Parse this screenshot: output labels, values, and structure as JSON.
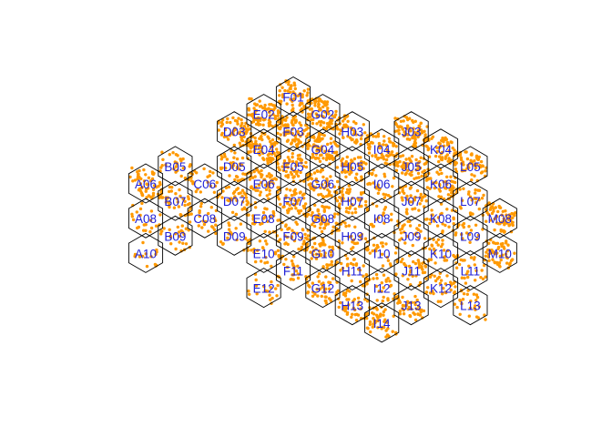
{
  "colors": {
    "cell_border": "#000000",
    "label": "#1f1fd6",
    "points": "#ff9900",
    "background": "#ffffff"
  },
  "grid": {
    "columns": [
      "A",
      "B",
      "C",
      "D",
      "E",
      "F",
      "G",
      "H",
      "I",
      "J",
      "K",
      "L",
      "M"
    ],
    "cells": [
      {
        "id": "A06",
        "label": "A06",
        "density": 0.6
      },
      {
        "id": "A08",
        "label": "A08",
        "density": 0.25
      },
      {
        "id": "A10",
        "label": "A10",
        "density": 0.15
      },
      {
        "id": "B05",
        "label": "B05",
        "density": 0.35
      },
      {
        "id": "B07",
        "label": "B07",
        "density": 0.4
      },
      {
        "id": "B09",
        "label": "B09",
        "density": 0.25
      },
      {
        "id": "C06",
        "label": "C06",
        "density": 0.25
      },
      {
        "id": "C08",
        "label": "C08",
        "density": 0.3
      },
      {
        "id": "D03",
        "label": "D03",
        "density": 0.7
      },
      {
        "id": "D05",
        "label": "D05",
        "density": 0.4
      },
      {
        "id": "D07",
        "label": "D07",
        "density": 0.4
      },
      {
        "id": "D09",
        "label": "D09",
        "density": 0.2
      },
      {
        "id": "E02",
        "label": "E02",
        "density": 0.8
      },
      {
        "id": "E04",
        "label": "E04",
        "density": 0.9
      },
      {
        "id": "E06",
        "label": "E06",
        "density": 0.6
      },
      {
        "id": "E08",
        "label": "E08",
        "density": 0.3
      },
      {
        "id": "E10",
        "label": "E10",
        "density": 0.25
      },
      {
        "id": "E12",
        "label": "E12",
        "density": 0.2
      },
      {
        "id": "F01",
        "label": "F01",
        "density": 0.6
      },
      {
        "id": "F03",
        "label": "F03",
        "density": 0.9
      },
      {
        "id": "F05",
        "label": "F05",
        "density": 0.6
      },
      {
        "id": "F07",
        "label": "F07",
        "density": 0.6
      },
      {
        "id": "F09",
        "label": "F09",
        "density": 0.5
      },
      {
        "id": "F11",
        "label": "F11",
        "density": 0.3
      },
      {
        "id": "G02",
        "label": "G02",
        "density": 0.9
      },
      {
        "id": "G04",
        "label": "G04",
        "density": 0.9
      },
      {
        "id": "G06",
        "label": "G06",
        "density": 0.6
      },
      {
        "id": "G08",
        "label": "G08",
        "density": 0.6
      },
      {
        "id": "G10",
        "label": "G10",
        "density": 0.5
      },
      {
        "id": "G12",
        "label": "G12",
        "density": 0.4
      },
      {
        "id": "H03",
        "label": "H03",
        "density": 0.5
      },
      {
        "id": "H05",
        "label": "H05",
        "density": 0.5
      },
      {
        "id": "H07",
        "label": "H07",
        "density": 0.5
      },
      {
        "id": "H09",
        "label": "H09",
        "density": 0.3
      },
      {
        "id": "H11",
        "label": "H11",
        "density": 0.3
      },
      {
        "id": "H13",
        "label": "H13",
        "density": 0.5
      },
      {
        "id": "I04",
        "label": "I04",
        "density": 0.7
      },
      {
        "id": "I06",
        "label": "I06",
        "density": 0.3
      },
      {
        "id": "I08",
        "label": "I08",
        "density": 0.2
      },
      {
        "id": "I10",
        "label": "I10",
        "density": 0.25
      },
      {
        "id": "I12",
        "label": "I12",
        "density": 0.3
      },
      {
        "id": "I14",
        "label": "I14",
        "density": 0.5
      },
      {
        "id": "J03",
        "label": "J03",
        "density": 0.8
      },
      {
        "id": "J05",
        "label": "J05",
        "density": 0.6
      },
      {
        "id": "J07",
        "label": "J07",
        "density": 0.4
      },
      {
        "id": "J09",
        "label": "J09",
        "density": 0.3
      },
      {
        "id": "J11",
        "label": "J11",
        "density": 0.4
      },
      {
        "id": "J13",
        "label": "J13",
        "density": 0.5
      },
      {
        "id": "K04",
        "label": "K04",
        "density": 0.6
      },
      {
        "id": "K06",
        "label": "K06",
        "density": 0.6
      },
      {
        "id": "K08",
        "label": "K08",
        "density": 0.3
      },
      {
        "id": "K10",
        "label": "K10",
        "density": 0.3
      },
      {
        "id": "K12",
        "label": "K12",
        "density": 0.35
      },
      {
        "id": "L05",
        "label": "L05",
        "density": 0.6
      },
      {
        "id": "L07",
        "label": "L07",
        "density": 0.3
      },
      {
        "id": "L09",
        "label": "L09",
        "density": 0.2
      },
      {
        "id": "L11",
        "label": "L11",
        "density": 0.3
      },
      {
        "id": "L13",
        "label": "L13",
        "density": 0.3
      },
      {
        "id": "M08",
        "label": "M08",
        "density": 0.7
      },
      {
        "id": "M10",
        "label": "M10",
        "density": 0.6
      }
    ]
  }
}
